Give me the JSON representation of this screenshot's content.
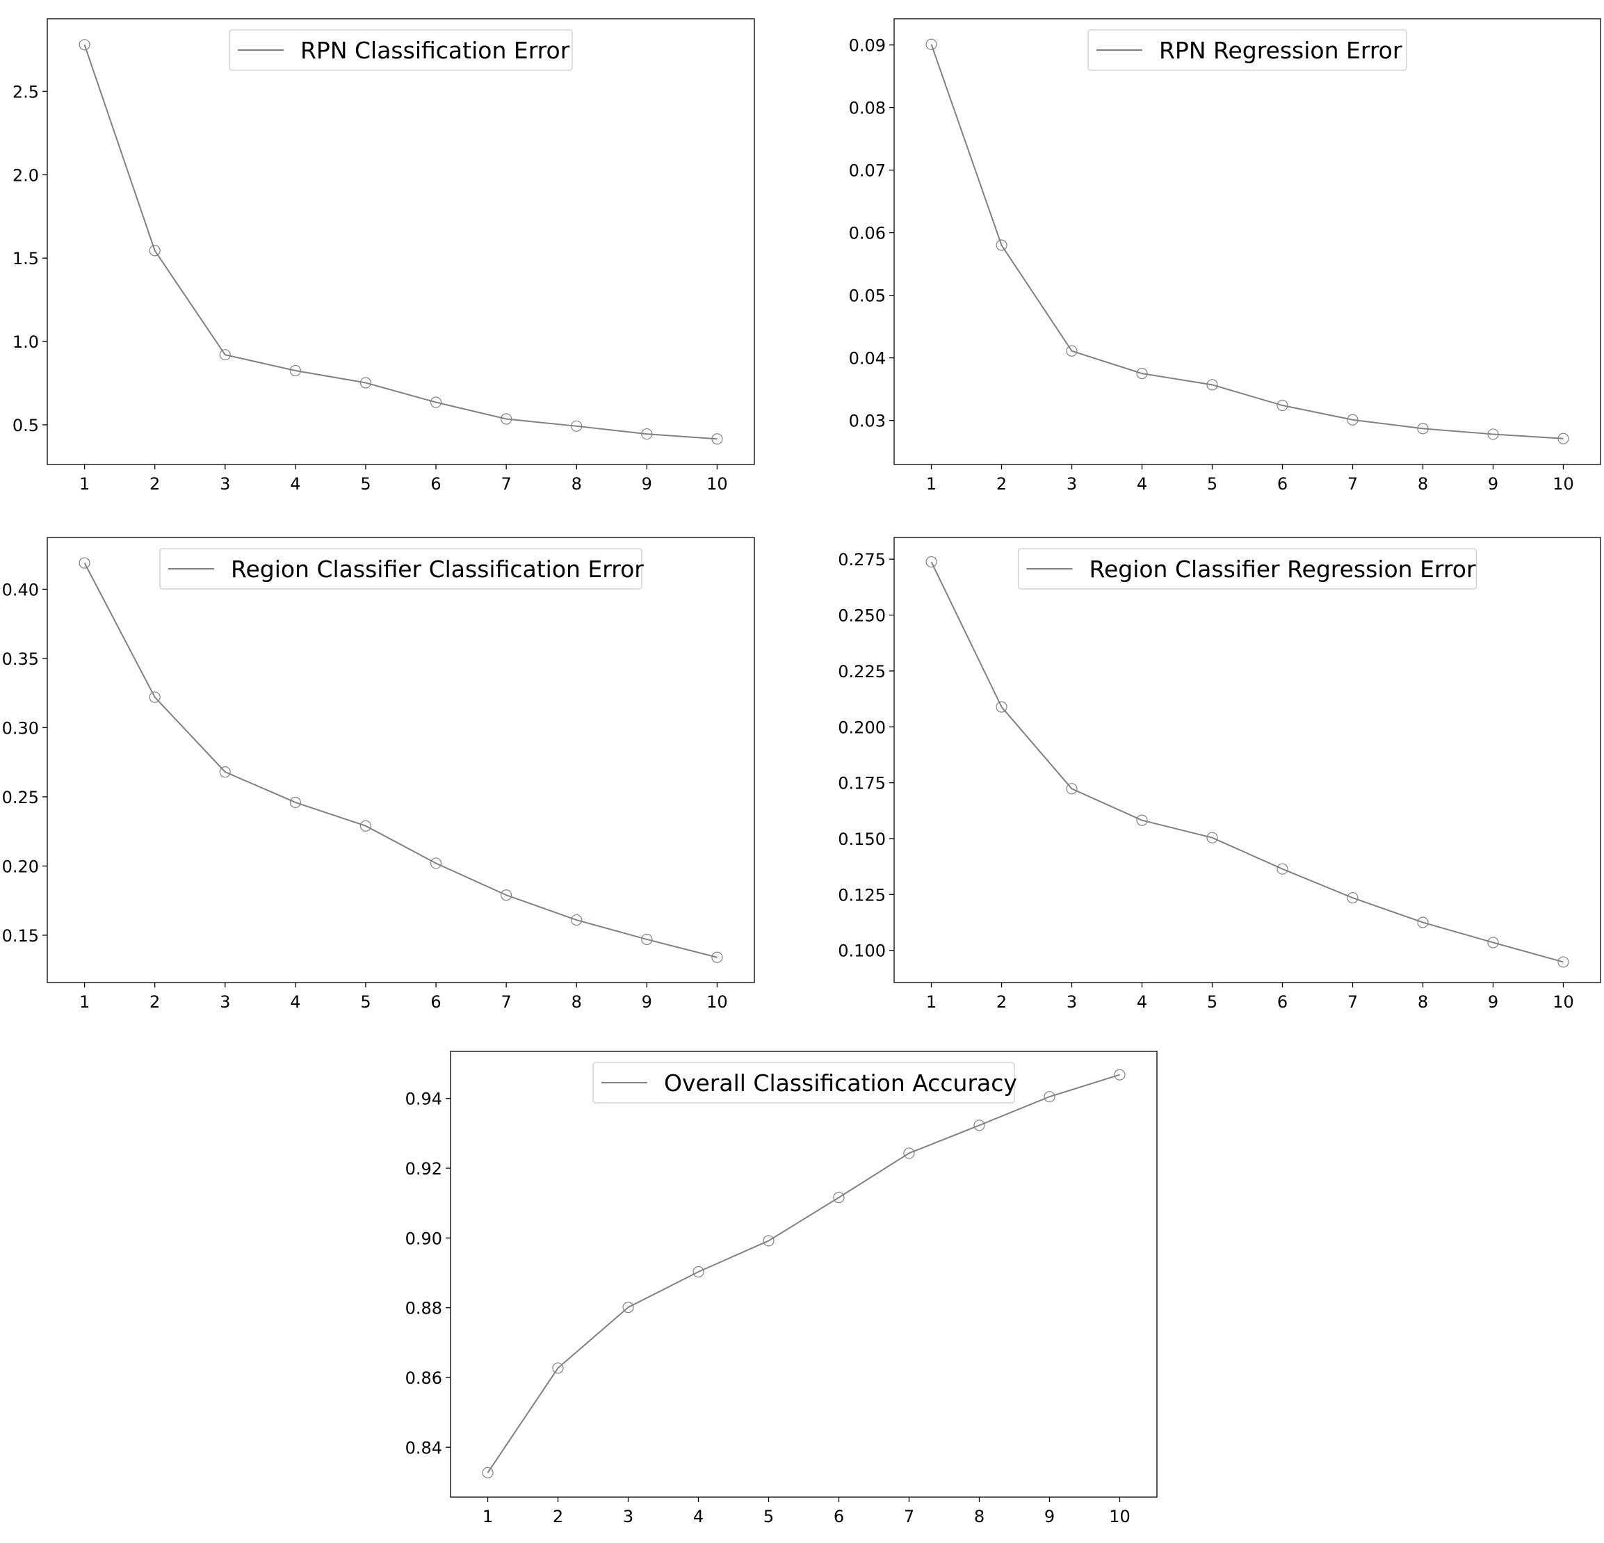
{
  "colors": {
    "line": "#808080",
    "marker": "#808080",
    "axes": "#000000",
    "legend_border": "#cccccc",
    "background": "#ffffff"
  },
  "chart_data": [
    {
      "type": "line",
      "x": [
        1,
        2,
        3,
        4,
        5,
        6,
        7,
        8,
        9,
        10
      ],
      "series": [
        {
          "name": "RPN Classification Error",
          "values": [
            2.78,
            1.545,
            0.92,
            0.825,
            0.752,
            0.635,
            0.535,
            0.492,
            0.445,
            0.415
          ]
        }
      ],
      "xticks": [
        1,
        2,
        3,
        4,
        5,
        6,
        7,
        8,
        9,
        10
      ],
      "xtick_labels": [
        "1",
        "2",
        "3",
        "4",
        "5",
        "6",
        "7",
        "8",
        "9",
        "10"
      ],
      "yticks": [
        0.5,
        1.0,
        1.5,
        2.0,
        2.5
      ],
      "ytick_labels": [
        "0.5",
        "1.0",
        "1.5",
        "2.0",
        "2.5"
      ],
      "xlim": [
        0.47,
        10.53
      ],
      "ylim": [
        0.2618,
        2.9356
      ],
      "grid": false,
      "legend": "upper-center",
      "marker": "open-circle"
    },
    {
      "type": "line",
      "x": [
        1,
        2,
        3,
        4,
        5,
        6,
        7,
        8,
        9,
        10
      ],
      "series": [
        {
          "name": "RPN Regression Error",
          "values": [
            0.0901,
            0.058,
            0.0411,
            0.0375,
            0.0357,
            0.0324,
            0.0301,
            0.0287,
            0.0278,
            0.0271
          ]
        }
      ],
      "xticks": [
        1,
        2,
        3,
        4,
        5,
        6,
        7,
        8,
        9,
        10
      ],
      "xtick_labels": [
        "1",
        "2",
        "3",
        "4",
        "5",
        "6",
        "7",
        "8",
        "9",
        "10"
      ],
      "yticks": [
        0.03,
        0.04,
        0.05,
        0.06,
        0.07,
        0.08,
        0.09
      ],
      "ytick_labels": [
        "0.03",
        "0.04",
        "0.05",
        "0.06",
        "0.07",
        "0.08",
        "0.09"
      ],
      "xlim": [
        0.47,
        10.53
      ],
      "ylim": [
        0.02296,
        0.09418
      ],
      "grid": false,
      "legend": "upper-center",
      "marker": "open-circle"
    },
    {
      "type": "line",
      "x": [
        1,
        2,
        3,
        4,
        5,
        6,
        7,
        8,
        9,
        10
      ],
      "series": [
        {
          "name": "Region Classifier Classification Error",
          "values": [
            0.419,
            0.322,
            0.268,
            0.246,
            0.229,
            0.202,
            0.179,
            0.161,
            0.147,
            0.134
          ]
        }
      ],
      "xticks": [
        1,
        2,
        3,
        4,
        5,
        6,
        7,
        8,
        9,
        10
      ],
      "xtick_labels": [
        "1",
        "2",
        "3",
        "4",
        "5",
        "6",
        "7",
        "8",
        "9",
        "10"
      ],
      "yticks": [
        0.15,
        0.2,
        0.25,
        0.3,
        0.35,
        0.4
      ],
      "ytick_labels": [
        "0.15",
        "0.20",
        "0.25",
        "0.30",
        "0.35",
        "0.40"
      ],
      "xlim": [
        0.47,
        10.53
      ],
      "ylim": [
        0.1158,
        0.4374
      ],
      "grid": false,
      "legend": "upper-center",
      "marker": "open-circle"
    },
    {
      "type": "line",
      "x": [
        1,
        2,
        3,
        4,
        5,
        6,
        7,
        8,
        9,
        10
      ],
      "series": [
        {
          "name": "Region Classifier Regression Error",
          "values": [
            0.2738,
            0.2089,
            0.1723,
            0.1582,
            0.1504,
            0.1364,
            0.1235,
            0.1125,
            0.1035,
            0.0948
          ]
        }
      ],
      "xticks": [
        1,
        2,
        3,
        4,
        5,
        6,
        7,
        8,
        9,
        10
      ],
      "xtick_labels": [
        "1",
        "2",
        "3",
        "4",
        "5",
        "6",
        "7",
        "8",
        "9",
        "10"
      ],
      "yticks": [
        0.1,
        0.125,
        0.15,
        0.175,
        0.2,
        0.225,
        0.25,
        0.275
      ],
      "ytick_labels": [
        "0.100",
        "0.125",
        "0.150",
        "0.175",
        "0.200",
        "0.225",
        "0.250",
        "0.275"
      ],
      "xlim": [
        0.47,
        10.53
      ],
      "ylim": [
        0.0856,
        0.2847
      ],
      "grid": false,
      "legend": "upper-center",
      "marker": "open-circle"
    },
    {
      "type": "line",
      "x": [
        1,
        2,
        3,
        4,
        5,
        6,
        7,
        8,
        9,
        10
      ],
      "series": [
        {
          "name": "Overall Classification Accuracy",
          "values": [
            0.8327,
            0.8627,
            0.8801,
            0.8903,
            0.8992,
            0.9116,
            0.9243,
            0.9323,
            0.9405,
            0.9468
          ]
        }
      ],
      "xticks": [
        1,
        2,
        3,
        4,
        5,
        6,
        7,
        8,
        9,
        10
      ],
      "xtick_labels": [
        "1",
        "2",
        "3",
        "4",
        "5",
        "6",
        "7",
        "8",
        "9",
        "10"
      ],
      "yticks": [
        0.84,
        0.86,
        0.88,
        0.9,
        0.92,
        0.94
      ],
      "ytick_labels": [
        "0.84",
        "0.86",
        "0.88",
        "0.90",
        "0.92",
        "0.94"
      ],
      "xlim": [
        0.47,
        10.53
      ],
      "ylim": [
        0.8257,
        0.9535
      ],
      "grid": false,
      "legend": "upper-center",
      "marker": "open-circle"
    }
  ]
}
